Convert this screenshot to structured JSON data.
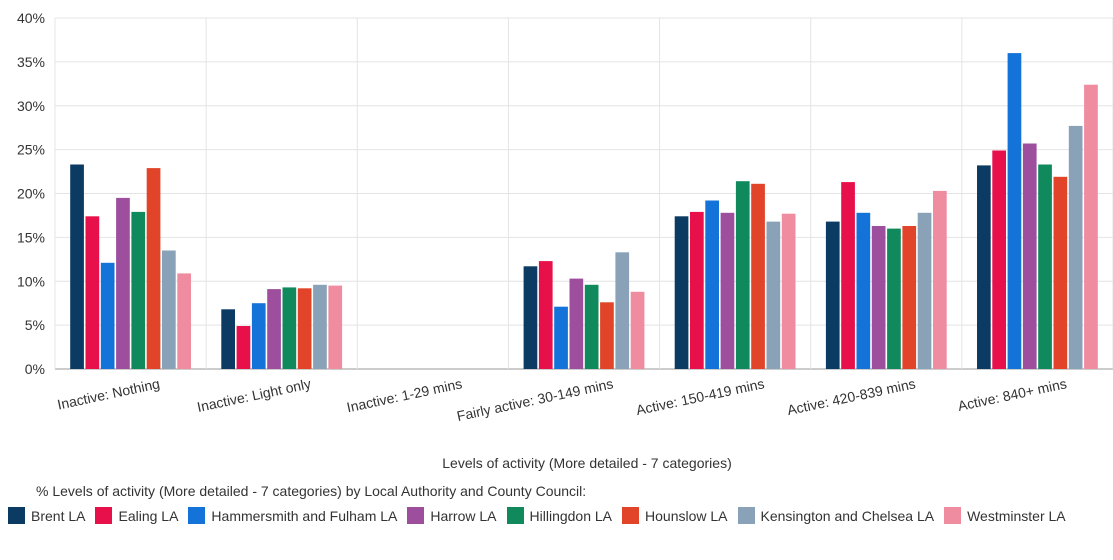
{
  "chart_data": {
    "type": "bar",
    "xlabel": "Levels of activity (More detailed - 7 categories)",
    "ylabel": "",
    "ylim": [
      0,
      40
    ],
    "yticks": [
      "0%",
      "5%",
      "10%",
      "15%",
      "20%",
      "25%",
      "30%",
      "35%",
      "40%"
    ],
    "grid": true,
    "legend_position": "bottom",
    "legend_title": "% Levels of activity (More detailed - 7 categories) by Local Authority and County Council:",
    "categories": [
      "Inactive: Nothing",
      "Inactive: Light only",
      "Inactive: 1-29 mins",
      "Fairly active: 30-149 mins",
      "Active: 150-419 mins",
      "Active: 420-839 mins",
      "Active: 840+ mins"
    ],
    "series": [
      {
        "name": "Brent LA",
        "color": "#0b3a62",
        "values": [
          23.3,
          6.8,
          null,
          11.7,
          17.4,
          16.8,
          23.2
        ]
      },
      {
        "name": "Ealing LA",
        "color": "#e8104a",
        "values": [
          17.4,
          4.9,
          null,
          12.3,
          17.9,
          21.3,
          24.9
        ]
      },
      {
        "name": "Hammersmith and Fulham LA",
        "color": "#1473d8",
        "values": [
          12.1,
          7.5,
          null,
          7.1,
          19.2,
          17.8,
          36.0
        ]
      },
      {
        "name": "Harrow LA",
        "color": "#9d4f9e",
        "values": [
          19.5,
          9.1,
          null,
          10.3,
          17.8,
          16.3,
          25.7
        ]
      },
      {
        "name": "Hillingdon LA",
        "color": "#108a5c",
        "values": [
          17.9,
          9.3,
          null,
          9.6,
          21.4,
          16.0,
          23.3
        ]
      },
      {
        "name": "Hounslow LA",
        "color": "#e2442a",
        "values": [
          22.9,
          9.2,
          null,
          7.6,
          21.1,
          16.3,
          21.9
        ]
      },
      {
        "name": "Kensington and Chelsea LA",
        "color": "#8aa2b8",
        "values": [
          13.5,
          9.6,
          null,
          13.3,
          16.8,
          17.8,
          27.7
        ]
      },
      {
        "name": "Westminster LA",
        "color": "#f08ca0",
        "values": [
          10.9,
          9.5,
          null,
          8.8,
          17.7,
          20.3,
          32.4
        ]
      }
    ]
  }
}
